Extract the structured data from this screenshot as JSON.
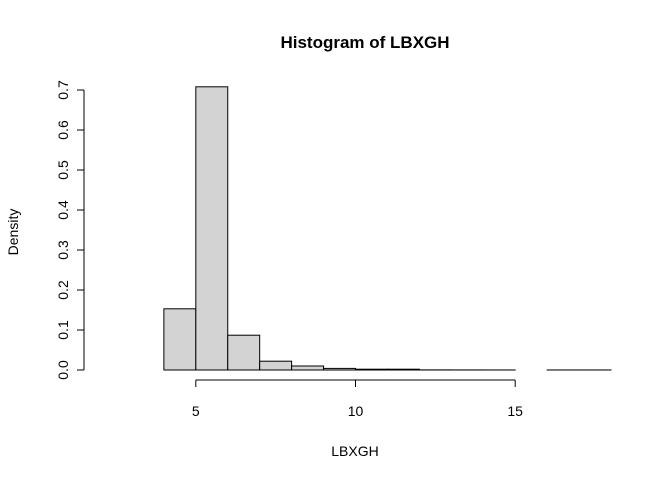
{
  "chart_data": {
    "type": "histogram",
    "title": "Histogram of LBXGH",
    "xlabel": "LBXGH",
    "ylabel": "Density",
    "xlim": [
      2,
      18
    ],
    "ylim": [
      0,
      0.7
    ],
    "x_ticks": [
      5,
      10,
      15
    ],
    "y_ticks": [
      0.0,
      0.1,
      0.2,
      0.3,
      0.4,
      0.5,
      0.6,
      0.7
    ],
    "x_tick_labels": [
      "5",
      "10",
      "15"
    ],
    "y_tick_labels": [
      "0.0",
      "0.1",
      "0.2",
      "0.3",
      "0.4",
      "0.5",
      "0.6",
      "0.7"
    ],
    "bins": [
      {
        "x0": 4,
        "x1": 5,
        "density": 0.153
      },
      {
        "x0": 5,
        "x1": 6,
        "density": 0.708
      },
      {
        "x0": 6,
        "x1": 7,
        "density": 0.087
      },
      {
        "x0": 7,
        "x1": 8,
        "density": 0.022
      },
      {
        "x0": 8,
        "x1": 9,
        "density": 0.01
      },
      {
        "x0": 9,
        "x1": 10,
        "density": 0.004
      },
      {
        "x0": 10,
        "x1": 11,
        "density": 0.002
      },
      {
        "x0": 11,
        "x1": 12,
        "density": 0.002
      },
      {
        "x0": 12,
        "x1": 13,
        "density": 0.0003
      },
      {
        "x0": 13,
        "x1": 14,
        "density": 0.0002
      },
      {
        "x0": 14,
        "x1": 15,
        "density": 0.0001
      },
      {
        "x0": 15,
        "x1": 16,
        "density": 0.0
      },
      {
        "x0": 16,
        "x1": 17,
        "density": 0.0001
      },
      {
        "x0": 17,
        "x1": 18,
        "density": 0.0001
      }
    ],
    "bar_fill": "#d3d3d3",
    "bar_stroke": "#000000",
    "grid": false,
    "legend": "none"
  }
}
